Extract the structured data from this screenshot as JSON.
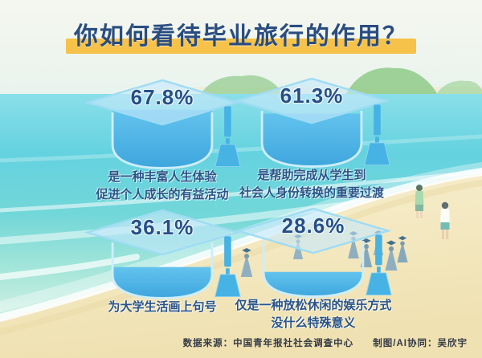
{
  "title": "你如何看待毕业旅行的作用？",
  "items": [
    {
      "percent_label": "67.8%",
      "value": 67.8,
      "line1": "是一种丰富人生体验",
      "line2": "促进个人成长的有益活动"
    },
    {
      "percent_label": "61.3%",
      "value": 61.3,
      "line1": "是帮助完成从学生到",
      "line2": "社会人身份转换的重要过渡"
    },
    {
      "percent_label": "36.1%",
      "value": 36.1,
      "line1": "为大学生活画上句号",
      "line2": ""
    },
    {
      "percent_label": "28.6%",
      "value": 28.6,
      "line1": "仅是一种放松休闲的娱乐方式",
      "line2": "没什么特殊意义"
    }
  ],
  "footer": {
    "source": "数据来源：中国青年报社社会调查中心",
    "credit": "制图/AI协同：吴欣宇"
  },
  "colors": {
    "title_text": "#2a4d80",
    "title_highlight": "#f6c24a",
    "cap_liquid": "#47b2e4",
    "caption_text": "#2a5488",
    "sea": "#64d2df",
    "sand": "#f0e2b2"
  },
  "chart_data": {
    "type": "bar",
    "title": "你如何看待毕业旅行的作用？",
    "categories": [
      "是一种丰富人生体验，促进个人成长的有益活动",
      "是帮助完成从学生到社会人身份转换的重要过渡",
      "为大学生活画上句号",
      "仅是一种放松休闲的娱乐方式，没什么特殊意义"
    ],
    "values": [
      67.8,
      61.3,
      36.1,
      28.6
    ],
    "unit": "%",
    "ylim": [
      0,
      100
    ],
    "legend": false,
    "source": "中国青年报社社会调查中心"
  }
}
